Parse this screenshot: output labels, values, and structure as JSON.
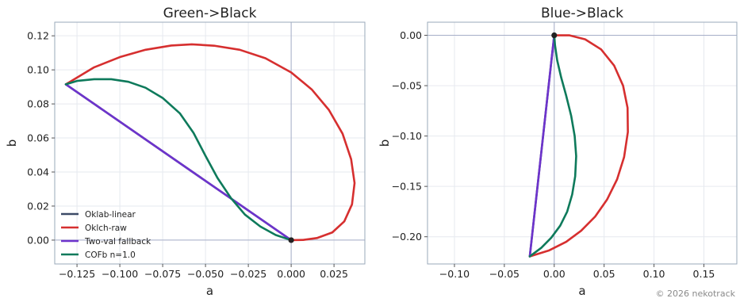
{
  "watermark": "© 2026 nekotrack",
  "colors": {
    "plot_bg": "#ffffff",
    "grid": "#e6e9ef",
    "spine": "#9aa8ba",
    "zero_line": "#a6aec8",
    "oklab_linear": "#3b4a66",
    "oklch_raw": "#d62f2f",
    "two_val": "#6d33cc",
    "cofb": "#0e7a5b",
    "endpoint": "#222222"
  },
  "chart_data": [
    {
      "type": "line",
      "title": "Green->Black",
      "xlabel": "a",
      "ylabel": "b",
      "xlim": [
        -0.138,
        0.043
      ],
      "ylim": [
        -0.014,
        0.128
      ],
      "xticks": [
        -0.125,
        -0.1,
        -0.075,
        -0.05,
        -0.025,
        0.0,
        0.025
      ],
      "xtick_labels": [
        "−0.125",
        "−0.100",
        "−0.075",
        "−0.050",
        "−0.025",
        "0.000",
        "0.025"
      ],
      "yticks": [
        0.0,
        0.02,
        0.04,
        0.06,
        0.08,
        0.1,
        0.12
      ],
      "ytick_labels": [
        "0.00",
        "0.02",
        "0.04",
        "0.06",
        "0.08",
        "0.10",
        "0.12"
      ],
      "grid": true,
      "legend": "bottom-left",
      "endpoints": [
        {
          "x": 0.0,
          "y": 0.0
        }
      ],
      "series": [
        {
          "name": "Oklab-linear",
          "color_key": "oklab_linear",
          "points": [
            [
              -0.1315,
              0.0915
            ],
            [
              0.0,
              0.0
            ]
          ]
        },
        {
          "name": "Oklch-raw",
          "color_key": "oklch_raw",
          "points": [
            [
              -0.1315,
              0.0915
            ],
            [
              -0.115,
              0.1015
            ],
            [
              -0.1,
              0.1075
            ],
            [
              -0.085,
              0.1118
            ],
            [
              -0.07,
              0.1143
            ],
            [
              -0.058,
              0.115
            ],
            [
              -0.045,
              0.1142
            ],
            [
              -0.03,
              0.1118
            ],
            [
              -0.015,
              0.1068
            ],
            [
              0.0,
              0.0985
            ],
            [
              0.012,
              0.0885
            ],
            [
              0.022,
              0.0765
            ],
            [
              0.03,
              0.0625
            ],
            [
              0.035,
              0.0475
            ],
            [
              0.037,
              0.0335
            ],
            [
              0.0355,
              0.021
            ],
            [
              0.031,
              0.011
            ],
            [
              0.024,
              0.0045
            ],
            [
              0.015,
              0.0012
            ],
            [
              0.007,
              0.0001
            ],
            [
              0.0,
              0.0
            ]
          ]
        },
        {
          "name": "Two-val fallback",
          "color_key": "two_val",
          "points": [
            [
              -0.1315,
              0.0915
            ],
            [
              0.0,
              0.0
            ]
          ]
        },
        {
          "name": "COFb n=1.0",
          "color_key": "cofb",
          "points": [
            [
              -0.1315,
              0.0915
            ],
            [
              -0.125,
              0.0935
            ],
            [
              -0.115,
              0.0945
            ],
            [
              -0.105,
              0.0945
            ],
            [
              -0.095,
              0.093
            ],
            [
              -0.085,
              0.0895
            ],
            [
              -0.075,
              0.0835
            ],
            [
              -0.065,
              0.0745
            ],
            [
              -0.057,
              0.063
            ],
            [
              -0.05,
              0.0495
            ],
            [
              -0.043,
              0.0365
            ],
            [
              -0.035,
              0.0245
            ],
            [
              -0.027,
              0.015
            ],
            [
              -0.018,
              0.008
            ],
            [
              -0.009,
              0.003
            ],
            [
              0.0,
              0.0
            ]
          ]
        }
      ]
    },
    {
      "type": "line",
      "title": "Blue->Black",
      "xlabel": "a",
      "ylabel": "b",
      "xlim": [
        -0.127,
        0.183
      ],
      "ylim": [
        -0.227,
        0.013
      ],
      "xticks": [
        -0.1,
        -0.05,
        0.0,
        0.05,
        0.1,
        0.15
      ],
      "xtick_labels": [
        "−0.10",
        "−0.05",
        "0.00",
        "0.05",
        "0.10",
        "0.15"
      ],
      "yticks": [
        0.0,
        -0.05,
        -0.1,
        -0.15,
        -0.2
      ],
      "ytick_labels": [
        "0.00",
        "−0.05",
        "−0.10",
        "−0.15",
        "−0.20"
      ],
      "grid": true,
      "legend": "none",
      "endpoints": [
        {
          "x": 0.0,
          "y": 0.0
        }
      ],
      "series": [
        {
          "name": "Oklab-linear",
          "color_key": "oklab_linear",
          "points": [
            [
              -0.0245,
              -0.2195
            ],
            [
              0.0,
              0.0
            ]
          ]
        },
        {
          "name": "Oklch-raw",
          "color_key": "oklch_raw",
          "points": [
            [
              -0.0245,
              -0.2195
            ],
            [
              -0.005,
              -0.2135
            ],
            [
              0.012,
              -0.205
            ],
            [
              0.027,
              -0.194
            ],
            [
              0.041,
              -0.18
            ],
            [
              0.053,
              -0.163
            ],
            [
              0.063,
              -0.143
            ],
            [
              0.07,
              -0.121
            ],
            [
              0.0738,
              -0.096
            ],
            [
              0.0735,
              -0.072
            ],
            [
              0.069,
              -0.05
            ],
            [
              0.06,
              -0.03
            ],
            [
              0.047,
              -0.014
            ],
            [
              0.031,
              -0.004
            ],
            [
              0.015,
              0.0
            ],
            [
              0.0,
              0.0
            ]
          ]
        },
        {
          "name": "Two-val fallback",
          "color_key": "two_val",
          "points": [
            [
              -0.0245,
              -0.2195
            ],
            [
              0.0,
              0.0
            ]
          ]
        },
        {
          "name": "COFb n=1.0",
          "color_key": "cofb",
          "points": [
            [
              -0.0245,
              -0.2195
            ],
            [
              -0.013,
              -0.211
            ],
            [
              -0.003,
              -0.201
            ],
            [
              0.006,
              -0.189
            ],
            [
              0.013,
              -0.175
            ],
            [
              0.018,
              -0.158
            ],
            [
              0.021,
              -0.14
            ],
            [
              0.022,
              -0.12
            ],
            [
              0.0205,
              -0.1
            ],
            [
              0.017,
              -0.08
            ],
            [
              0.012,
              -0.06
            ],
            [
              0.007,
              -0.042
            ],
            [
              0.003,
              -0.025
            ],
            [
              0.0008,
              -0.01
            ],
            [
              0.0,
              0.0
            ]
          ]
        }
      ]
    }
  ]
}
